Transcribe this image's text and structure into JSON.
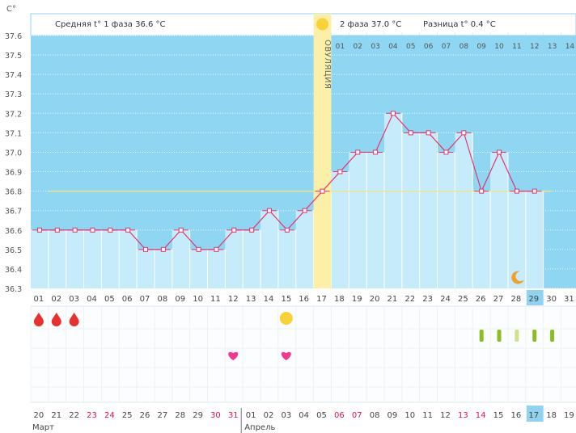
{
  "chart_data": {
    "type": "line",
    "y_unit": "C°",
    "ylim": [
      36.3,
      37.6
    ],
    "y_ticks": [
      "37.6",
      "37.5",
      "37.4",
      "37.3",
      "37.2",
      "37.1",
      "37.0",
      "36.9",
      "36.8",
      "36.7",
      "36.6",
      "36.5",
      "36.4",
      "36.3"
    ],
    "phase1_label": "Средняя t° 1 фаза",
    "phase1_avg": "36.6 °C",
    "phase2_label": "2 фаза",
    "phase2_avg": "37.0 °C",
    "diff_label": "Разница t°",
    "diff_value": "0.4 °C",
    "ovulation_label": "ОВУЛЯЦИЯ",
    "ovulation_day": 17,
    "coverline": 36.8,
    "cycle_days": [
      "01",
      "02",
      "03",
      "04",
      "05",
      "06",
      "07",
      "08",
      "09",
      "10",
      "11",
      "12",
      "13",
      "14",
      "15",
      "16",
      "17",
      "18",
      "19",
      "20",
      "21",
      "22",
      "23",
      "24",
      "25",
      "26",
      "27",
      "28",
      "29",
      "30",
      "31"
    ],
    "phase2_days": [
      "01",
      "02",
      "03",
      "04",
      "05",
      "06",
      "07",
      "08",
      "09",
      "10",
      "11",
      "12",
      "13",
      "14"
    ],
    "current_day": 29,
    "temperatures": [
      36.6,
      36.6,
      36.6,
      36.6,
      36.6,
      36.6,
      36.5,
      36.5,
      36.6,
      36.5,
      36.5,
      36.6,
      36.6,
      36.7,
      36.6,
      36.7,
      36.8,
      36.9,
      37.0,
      37.0,
      37.2,
      37.1,
      37.1,
      37.0,
      37.1,
      36.8,
      37.0,
      36.8,
      36.8
    ],
    "dates": [
      "20",
      "21",
      "22",
      "23",
      "24",
      "25",
      "26",
      "27",
      "28",
      "29",
      "30",
      "31",
      "01",
      "02",
      "03",
      "04",
      "05",
      "06",
      "07",
      "08",
      "09",
      "10",
      "11",
      "12",
      "13",
      "14",
      "15",
      "16",
      "17",
      "18",
      "19"
    ],
    "weekend_date_indices": [
      3,
      4,
      10,
      11,
      17,
      18,
      24,
      25
    ],
    "month_1": "Март",
    "month_2": "Апрель",
    "period_days": [
      1,
      2,
      3
    ],
    "ovulation_marker_day": 15,
    "heart_days": [
      12,
      15
    ],
    "test_days": [
      26,
      27,
      28,
      29,
      30
    ],
    "moon_day": 28,
    "colors": {
      "bg": "#8ed6f2",
      "bar": "#c6ecfb",
      "line": "#e8336b",
      "coverline": "#ece58e",
      "ovulation": "#fcefa8",
      "sun": "#f8d237",
      "drop": "#e8312f",
      "heart": "#f2398c",
      "test": "#8cbd22",
      "test_light": "#cbe38a",
      "moon": "#f2a02c",
      "today": "#8fd3f0",
      "red_text": "#e0134c"
    }
  }
}
